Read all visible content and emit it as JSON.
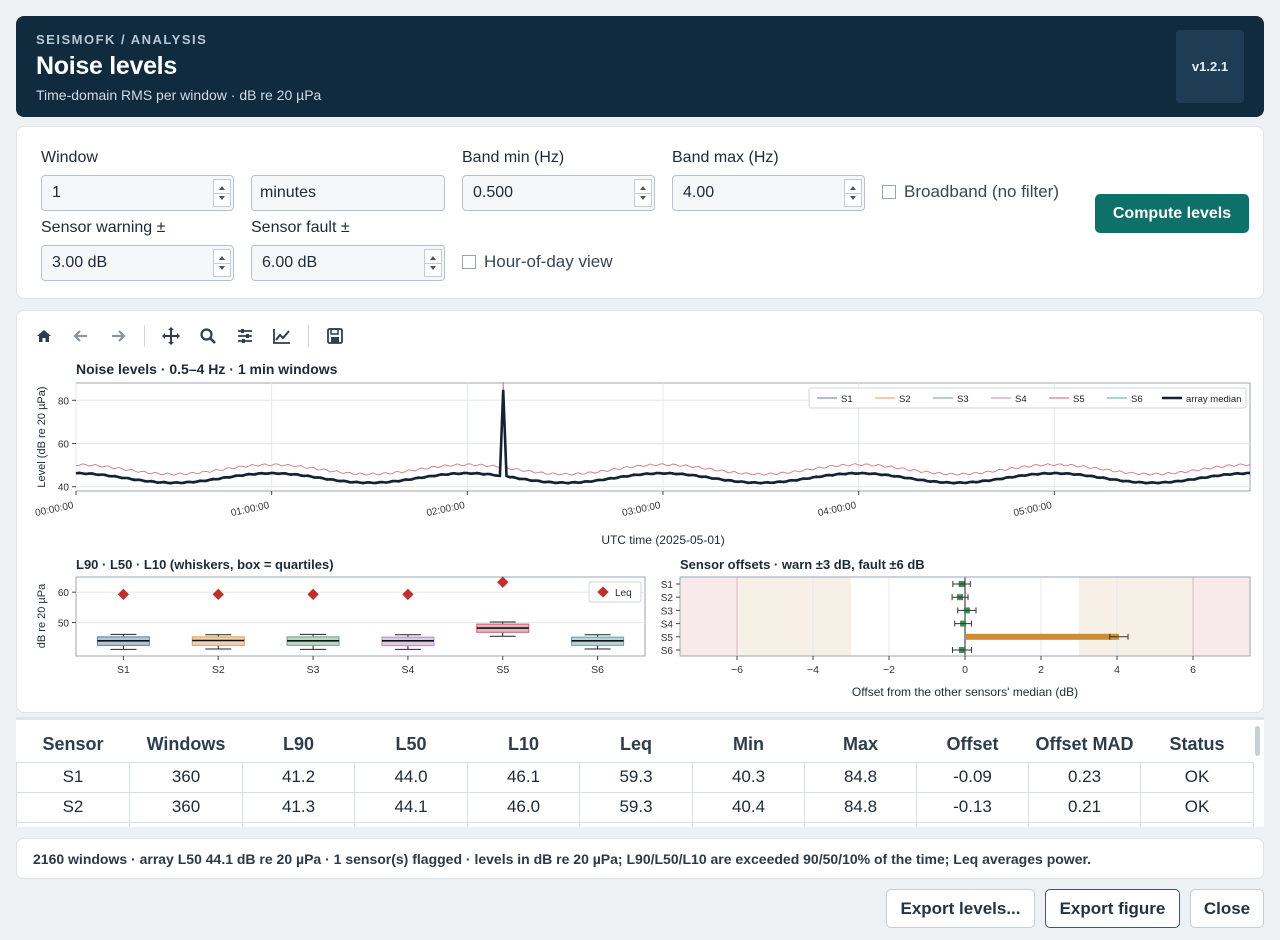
{
  "header": {
    "breadcrumb": "SEISMOFK / ANALYSIS",
    "title": "Noise levels",
    "subtitle": "Time-domain RMS per window  ·  dB re 20 µPa",
    "version": "v1.2.1"
  },
  "controls": {
    "window_label": "Window",
    "window_value": "1",
    "window_unit": "minutes",
    "band_min_label": "Band min (Hz)",
    "band_min_value": "0.500",
    "band_max_label": "Band max (Hz)",
    "band_max_value": "4.00",
    "broadband_label": "Broadband (no filter)",
    "sensor_warning_label": "Sensor warning ±",
    "sensor_warning_value": "3.00 dB",
    "sensor_fault_label": "Sensor fault ±",
    "sensor_fault_value": "6.00 dB",
    "hour_of_day_label": "Hour-of-day view",
    "compute_button": "Compute levels"
  },
  "toolbar": {
    "icons": [
      "home-icon",
      "back-arrow-icon",
      "forward-arrow-icon",
      "pan-icon",
      "zoom-icon",
      "configure-subplots-icon",
      "edit-axis-icon",
      "save-icon"
    ]
  },
  "colors": {
    "S1": "#5b7fa0",
    "S2": "#e09a55",
    "S3": "#6aa57c",
    "S4": "#b48cc2",
    "S5": "#c9606c",
    "S6": "#5aa6a9",
    "median": "#142233",
    "leq": "#c0302b",
    "offset_bar": "#d08a3c",
    "offset_marker": "#3d8f5a",
    "warn_zone": "#f7f0e6",
    "fault_zone": "#f8e9ea",
    "primary": "#0d7069"
  },
  "chart_data": [
    {
      "type": "line",
      "title": "Noise levels  ·  0.5–4 Hz  ·  1 min windows",
      "xlabel": "UTC time  (2025-05-01)",
      "ylabel": "Level (dB re 20 µPa)",
      "x_ticks": [
        "00:00:00",
        "01:00:00",
        "02:00:00",
        "03:00:00",
        "04:00:00",
        "05:00:00"
      ],
      "x_range_minutes": [
        0,
        360
      ],
      "ylim": [
        38,
        88
      ],
      "y_ticks": [
        40,
        60,
        80
      ],
      "grid": true,
      "legend_position": "top-right",
      "series": [
        {
          "name": "S1",
          "baseline": 44.0,
          "amplitude": 2.2,
          "spike": 84.8
        },
        {
          "name": "S2",
          "baseline": 44.1,
          "amplitude": 2.2,
          "spike": 84.8
        },
        {
          "name": "S3",
          "baseline": 44.0,
          "amplitude": 2.2,
          "spike": 84.8
        },
        {
          "name": "S4",
          "baseline": 44.0,
          "amplitude": 2.2,
          "spike": 84.8
        },
        {
          "name": "S5",
          "baseline": 48.0,
          "amplitude": 2.2,
          "spike": 88.5
        },
        {
          "name": "S6",
          "baseline": 44.0,
          "amplitude": 2.2,
          "spike": 84.8
        },
        {
          "name": "array median",
          "baseline": 44.0,
          "amplitude": 2.2,
          "spike": 84.8
        }
      ],
      "period_minutes": 60,
      "spike_minute": 131
    },
    {
      "type": "box",
      "title": "L90 · L50 · L10 (whiskers, box = quartiles)",
      "ylabel": "dB re 20 µPa",
      "categories": [
        "S1",
        "S2",
        "S3",
        "S4",
        "S5",
        "S6"
      ],
      "ylim": [
        39,
        65
      ],
      "y_ticks": [
        50,
        60
      ],
      "legend": "Leq",
      "boxes": [
        {
          "l90": 41.2,
          "q1": 42.5,
          "l50": 44.0,
          "q3": 45.3,
          "l10": 46.1,
          "leq": 59.3
        },
        {
          "l90": 41.3,
          "q1": 42.5,
          "l50": 44.1,
          "q3": 45.3,
          "l10": 46.0,
          "leq": 59.3
        },
        {
          "l90": 41.2,
          "q1": 42.5,
          "l50": 44.0,
          "q3": 45.3,
          "l10": 46.1,
          "leq": 59.3
        },
        {
          "l90": 41.2,
          "q1": 42.4,
          "l50": 44.0,
          "q3": 45.2,
          "l10": 46.0,
          "leq": 59.3
        },
        {
          "l90": 45.5,
          "q1": 46.8,
          "l50": 48.2,
          "q3": 49.5,
          "l10": 50.2,
          "leq": 63.3
        },
        {
          "l90": 41.3,
          "q1": 42.5,
          "l50": 44.0,
          "q3": 45.2,
          "l10": 46.0,
          "leq": 59.3
        }
      ]
    },
    {
      "type": "bar",
      "orientation": "horizontal",
      "title": "Sensor offsets  ·  warn ±3 dB, fault ±6 dB",
      "xlabel": "Offset from the other sensors' median (dB)",
      "categories": [
        "S1",
        "S2",
        "S3",
        "S4",
        "S5",
        "S6"
      ],
      "values": [
        -0.09,
        -0.13,
        0.05,
        -0.05,
        4.05,
        -0.08
      ],
      "errors": [
        0.23,
        0.21,
        0.24,
        0.22,
        0.24,
        0.25
      ],
      "xlim": [
        -7.5,
        7.5
      ],
      "x_ticks": [
        -6,
        -4,
        -2,
        0,
        2,
        4,
        6
      ],
      "warn": 3,
      "fault": 6
    }
  ],
  "table": {
    "headers": [
      "Sensor",
      "Windows",
      "L90",
      "L50",
      "L10",
      "Leq",
      "Min",
      "Max",
      "Offset",
      "Offset MAD",
      "Status"
    ],
    "rows": [
      [
        "S1",
        "360",
        "41.2",
        "44.0",
        "46.1",
        "59.3",
        "40.3",
        "84.8",
        "-0.09",
        "0.23",
        "OK"
      ],
      [
        "S2",
        "360",
        "41.3",
        "44.1",
        "46.0",
        "59.3",
        "40.4",
        "84.8",
        "-0.13",
        "0.21",
        "OK"
      ]
    ]
  },
  "status": "2160 windows  ·  array L50 44.1 dB re 20 µPa  ·  1 sensor(s) flagged  ·  levels in dB re 20 µPa; L90/L50/L10 are exceeded 90/50/10% of the time; Leq averages power.",
  "footer": {
    "export_levels": "Export levels...",
    "export_figure": "Export figure",
    "close": "Close"
  }
}
